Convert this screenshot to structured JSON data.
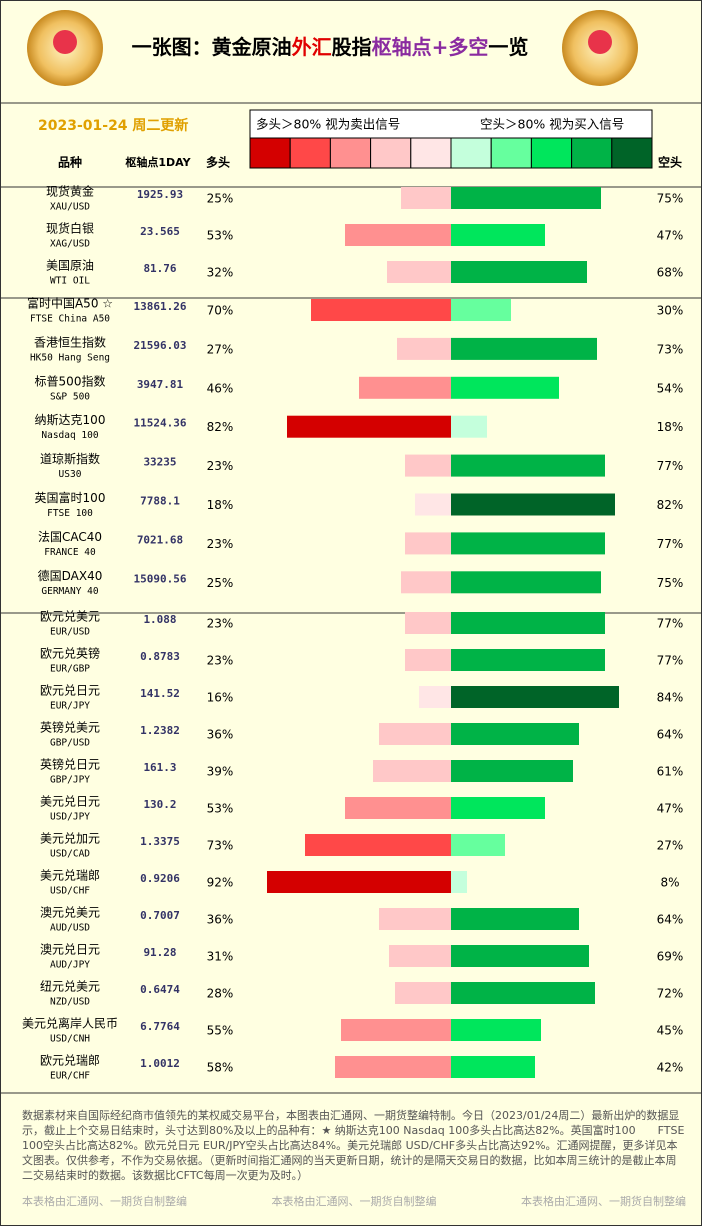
{
  "header": {
    "title_parts": [
      {
        "text": "一张图：黄金原油",
        "color": "#000000"
      },
      {
        "text": "外汇",
        "color": "#e00000"
      },
      {
        "text": "股指",
        "color": "#000000"
      },
      {
        "text": "枢轴点+多空",
        "color": "#8a2ba0"
      },
      {
        "text": "一览",
        "color": "#000000"
      }
    ],
    "date": "2023-01-24 周二更新",
    "legend_long": "多头＞80% 视为卖出信号",
    "legend_short": "空头＞80% 视为买入信号",
    "scale_colors": [
      "#d40000",
      "#ff4848",
      "#ff9090",
      "#ffc8c8",
      "#ffe6e6",
      "#c4ffdc",
      "#66ff9e",
      "#00e65c",
      "#00b347",
      "#006428"
    ]
  },
  "table": {
    "columns": [
      "品种",
      "枢轴点1DAY",
      "多头",
      "空头"
    ],
    "groups": [
      [
        {
          "name": "现货黄金",
          "code": "XAU/USD",
          "pivot": "1925.93",
          "long": 25,
          "long_label": "25%",
          "short": 75,
          "short_label": "75%"
        },
        {
          "name": "现货白银",
          "code": "XAG/USD",
          "pivot": "23.565",
          "long": 53,
          "long_label": "53%",
          "short": 47,
          "short_label": "47%"
        },
        {
          "name": "美国原油",
          "code": "WTI OIL",
          "pivot": "81.76",
          "long": 32,
          "long_label": "32%",
          "short": 68,
          "short_label": "68%"
        }
      ],
      [
        {
          "name": "富时中国A50 ☆",
          "code": "FTSE China A50",
          "pivot": "13861.26",
          "long": 70,
          "long_label": "70%",
          "short": 30,
          "short_label": "30%"
        },
        {
          "name": "香港恒生指数",
          "code": "HK50 Hang Seng",
          "pivot": "21596.03",
          "long": 27,
          "long_label": "27%",
          "short": 73,
          "short_label": "73%"
        },
        {
          "name": "标普500指数",
          "code": "S&P 500",
          "pivot": "3947.81",
          "long": 46,
          "long_label": "46%",
          "short": 54,
          "short_label": "54%"
        },
        {
          "name": "纳斯达克100",
          "code": "Nasdaq 100",
          "pivot": "11524.36",
          "long": 82,
          "long_label": "82%",
          "short": 18,
          "short_label": "18%"
        },
        {
          "name": "道琼斯指数",
          "code": "US30",
          "pivot": "33235",
          "long": 23,
          "long_label": "23%",
          "short": 77,
          "short_label": "77%"
        },
        {
          "name": "英国富时100",
          "code": "FTSE 100",
          "pivot": "7788.1",
          "long": 18,
          "long_label": "18%",
          "short": 82,
          "short_label": "82%"
        },
        {
          "name": "法国CAC40",
          "code": "FRANCE 40",
          "pivot": "7021.68",
          "long": 23,
          "long_label": "23%",
          "short": 77,
          "short_label": "77%"
        },
        {
          "name": "德国DAX40",
          "code": "GERMANY 40",
          "pivot": "15090.56",
          "long": 25,
          "long_label": "25%",
          "short": 75,
          "short_label": "75%"
        }
      ],
      [
        {
          "name": "欧元兑美元",
          "code": "EUR/USD",
          "pivot": "1.088",
          "long": 23,
          "long_label": "23%",
          "short": 77,
          "short_label": "77%"
        },
        {
          "name": "欧元兑英镑",
          "code": "EUR/GBP",
          "pivot": "0.8783",
          "long": 23,
          "long_label": "23%",
          "short": 77,
          "short_label": "77%"
        },
        {
          "name": "欧元兑日元",
          "code": "EUR/JPY",
          "pivot": "141.52",
          "long": 16,
          "long_label": "16%",
          "short": 84,
          "short_label": "84%"
        },
        {
          "name": "英镑兑美元",
          "code": "GBP/USD",
          "pivot": "1.2382",
          "long": 36,
          "long_label": "36%",
          "short": 64,
          "short_label": "64%"
        },
        {
          "name": "英镑兑日元",
          "code": "GBP/JPY",
          "pivot": "161.3",
          "long": 39,
          "long_label": "39%",
          "short": 61,
          "short_label": "61%"
        },
        {
          "name": "美元兑日元",
          "code": "USD/JPY",
          "pivot": "130.2",
          "long": 53,
          "long_label": "53%",
          "short": 47,
          "short_label": "47%"
        },
        {
          "name": "美元兑加元",
          "code": "USD/CAD",
          "pivot": "1.3375",
          "long": 73,
          "long_label": "73%",
          "short": 27,
          "short_label": "27%"
        },
        {
          "name": "美元兑瑞郎",
          "code": "USD/CHF",
          "pivot": "0.9206",
          "long": 92,
          "long_label": "92%",
          "short": 8,
          "short_label": "8%"
        },
        {
          "name": "澳元兑美元",
          "code": "AUD/USD",
          "pivot": "0.7007",
          "long": 36,
          "long_label": "36%",
          "short": 64,
          "short_label": "64%"
        },
        {
          "name": "澳元兑日元",
          "code": "AUD/JPY",
          "pivot": "91.28",
          "long": 31,
          "long_label": "31%",
          "short": 69,
          "short_label": "69%"
        },
        {
          "name": "纽元兑美元",
          "code": "NZD/USD",
          "pivot": "0.6474",
          "long": 28,
          "long_label": "28%",
          "short": 72,
          "short_label": "72%"
        },
        {
          "name": "美元兑离岸人民币",
          "code": "USD/CNH",
          "pivot": "6.7764",
          "long": 55,
          "long_label": "55%",
          "short": 45,
          "short_label": "45%"
        },
        {
          "name": "欧元兑瑞郎",
          "code": "EUR/CHF",
          "pivot": "1.0012",
          "long": 58,
          "long_label": "58%",
          "short": 42,
          "short_label": "42%"
        }
      ]
    ]
  },
  "footer": {
    "note": "数据素材来自国际经纪商市值领先的某权威交易平台，本图表由汇通网、一期货整编特制。今日（2023/01/24周二）最新出炉的数据显示，截止上个交易日结束时，头寸达到80%及以上的品种有：★ 纳斯达克100 Nasdaq 100多头占比高达82%。英国富时100　　FTSE 100空头占比高达82%。欧元兑日元 EUR/JPY空头占比高达84%。美元兑瑞郎 USD/CHF多头占比高达92%。汇通网提醒，更多详见本文图表。仅供参考，不作为交易依据。（更新时间指汇通网的当天更新日期，统计的是隔天交易日的数据，比如本周三统计的是截止本周二交易结束时的数据。该数据比CFTC每周一次更为及时。）",
    "credits": [
      "本表格由汇通网、一期货自制整编",
      "本表格由汇通网、一期货自制整编",
      "本表格由汇通网、一期货自制整编"
    ]
  }
}
